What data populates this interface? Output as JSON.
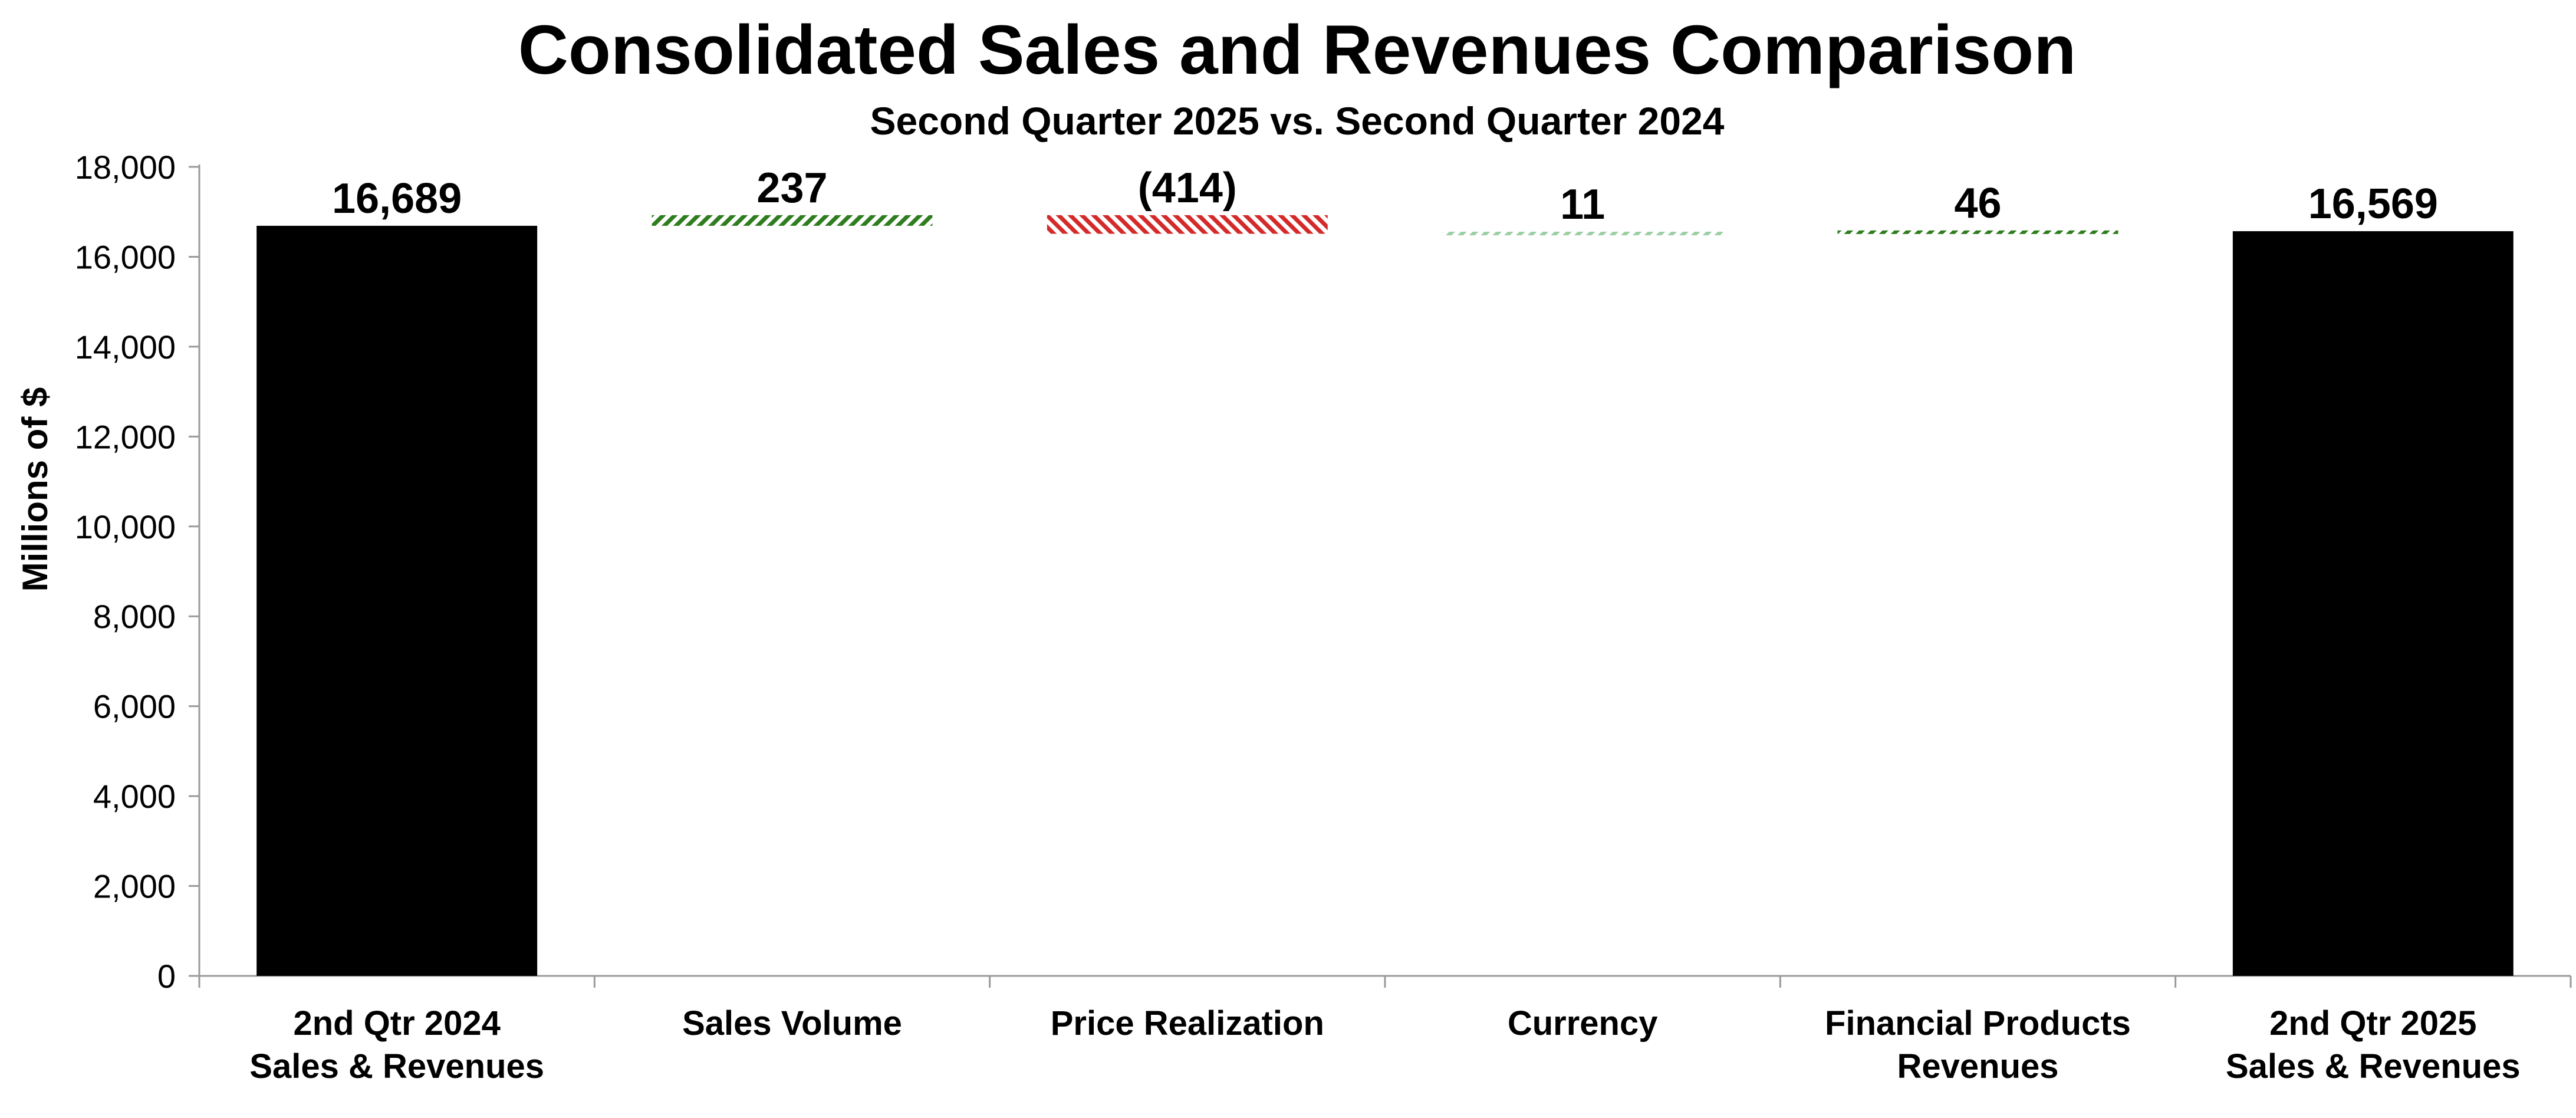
{
  "chart_data": {
    "type": "bar",
    "subtype": "waterfall",
    "title": "Consolidated Sales and Revenues Comparison",
    "subtitle": "Second Quarter 2025 vs. Second Quarter 2024",
    "ylabel": "Millions of $",
    "xlabel": "",
    "ylim": [
      0,
      18000
    ],
    "yticks": [
      0,
      2000,
      4000,
      6000,
      8000,
      10000,
      12000,
      14000,
      16000,
      18000
    ],
    "ytick_labels": [
      "0",
      "2,000",
      "4,000",
      "6,000",
      "8,000",
      "10,000",
      "12,000",
      "14,000",
      "16,000",
      "18,000"
    ],
    "grid": false,
    "legend": "none",
    "categories": [
      {
        "lines": [
          "2nd Qtr 2024",
          "Sales & Revenues"
        ]
      },
      {
        "lines": [
          "Sales Volume"
        ]
      },
      {
        "lines": [
          "Price Realization"
        ]
      },
      {
        "lines": [
          "Currency"
        ]
      },
      {
        "lines": [
          "Financial Products",
          "Revenues"
        ]
      },
      {
        "lines": [
          "2nd Qtr 2025",
          "Sales & Revenues"
        ]
      }
    ],
    "bars": [
      {
        "kind": "total",
        "value": 16689,
        "label": "16,689"
      },
      {
        "kind": "increase",
        "value": 237,
        "label": "237"
      },
      {
        "kind": "decrease",
        "value": -414,
        "label": "(414)"
      },
      {
        "kind": "increase-minor",
        "value": 11,
        "label": "11"
      },
      {
        "kind": "increase",
        "value": 46,
        "label": "46"
      },
      {
        "kind": "total",
        "value": 16569,
        "label": "16,569"
      }
    ],
    "colors": {
      "total": "#000000",
      "increase": "#2e7d1e",
      "decrease": "#d42a2a",
      "increase-minor": "#9ccfa4",
      "axis": "#9a9a9a",
      "text": "#000000"
    }
  }
}
